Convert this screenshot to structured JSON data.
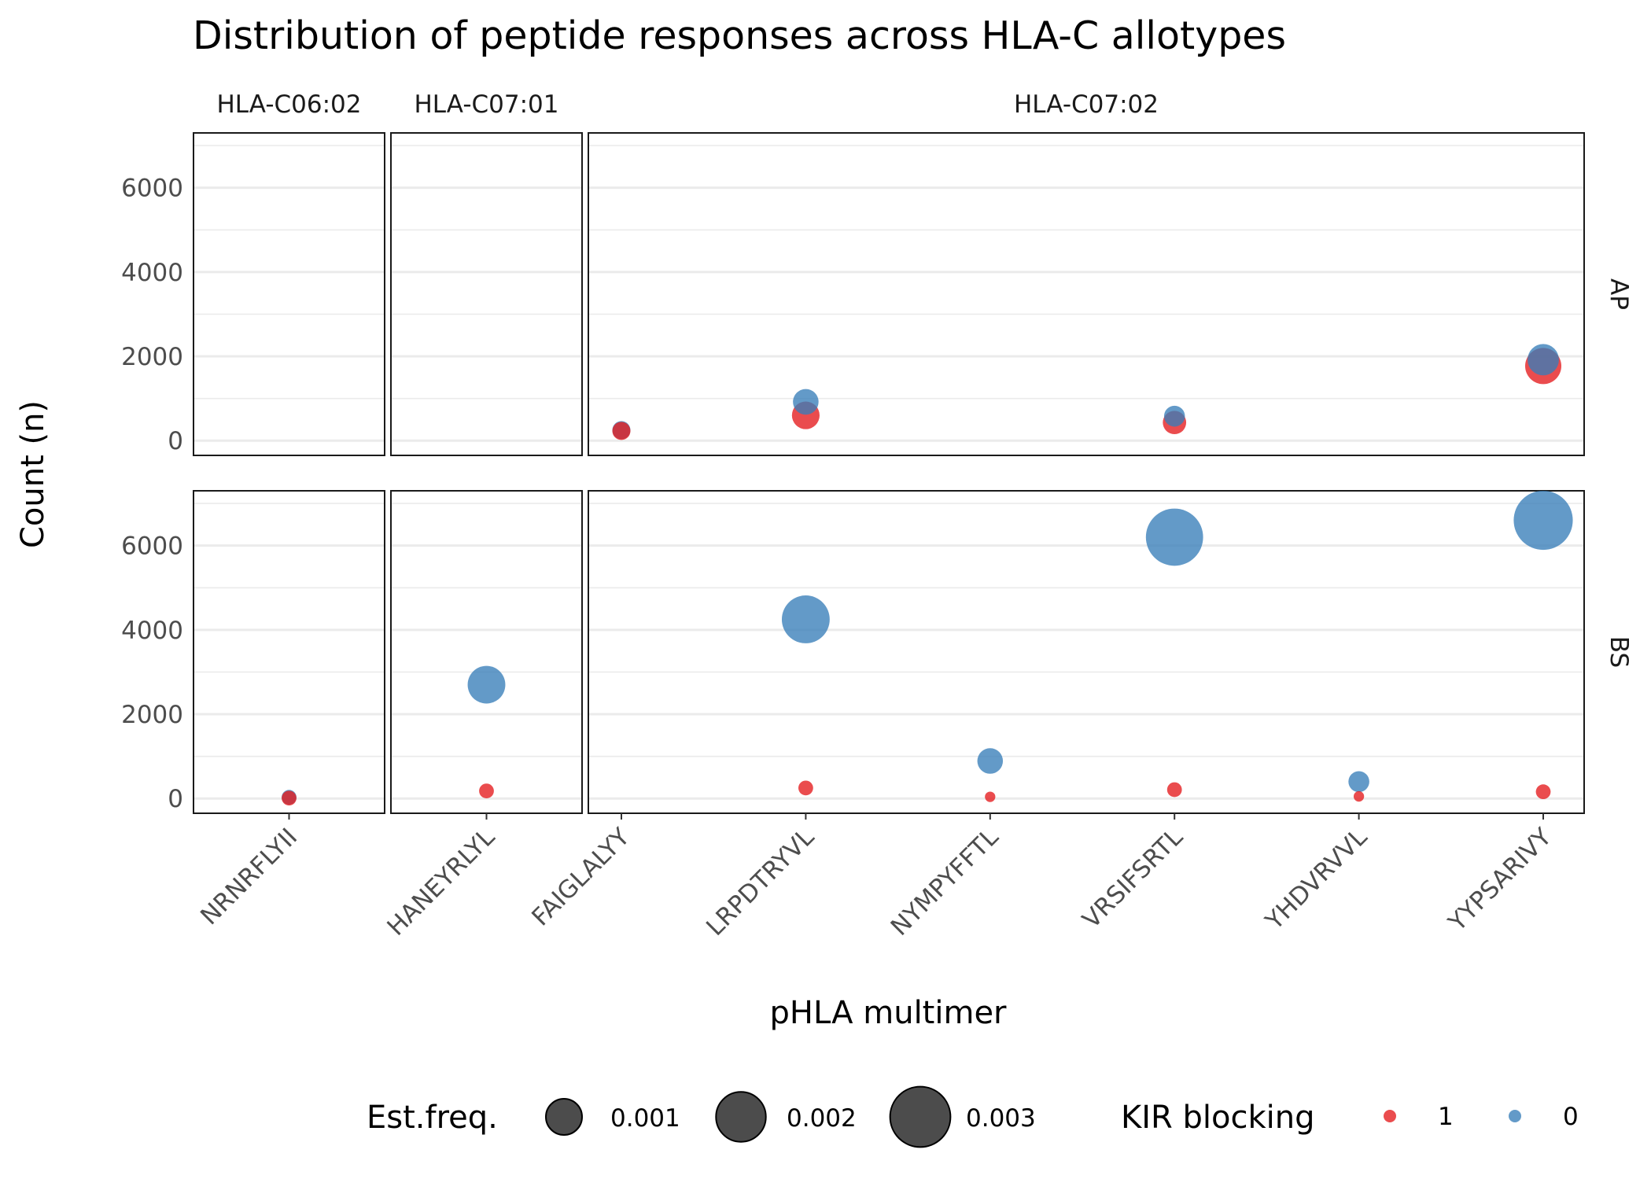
{
  "chart_data": {
    "type": "scatter",
    "title": "Distribution of peptide responses across HLA-C allotypes",
    "xlabel": "pHLA multimer",
    "ylabel": "Count (n)",
    "ylim": [
      -350,
      7300
    ],
    "yticks": [
      0,
      2000,
      4000,
      6000
    ],
    "grid": true,
    "facets": {
      "columns": [
        {
          "label": "HLA-C06:02",
          "categories": [
            "NRNRFLYII"
          ]
        },
        {
          "label": "HLA-C07:01",
          "categories": [
            "HANEYRLYL"
          ]
        },
        {
          "label": "HLA-C07:02",
          "categories": [
            "FAIGLALYY",
            "LRPDTRYVL",
            "NYMPYFFTL",
            "VRSIFSRTL",
            "YHDVRVVL",
            "YYPSARIVY"
          ]
        }
      ],
      "rows": [
        "AP",
        "BS"
      ]
    },
    "legend": {
      "placement": "bottom",
      "size_title": "Est.freq.",
      "size_entries": [
        {
          "label": "0.001",
          "value": 0.001
        },
        {
          "label": "0.002",
          "value": 0.002
        },
        {
          "label": "0.003",
          "value": 0.003
        }
      ],
      "color_title": "KIR blocking",
      "color_entries": [
        {
          "label": "1",
          "color": "#e41a1c"
        },
        {
          "label": "0",
          "color": "#377eb8"
        }
      ]
    },
    "colors": {
      "1": "#e41a1c",
      "0": "#377eb8"
    },
    "points": [
      {
        "row": "AP",
        "peptide": "FAIGLALYY",
        "kir": "0",
        "count": 250,
        "freq": 0.0003
      },
      {
        "row": "AP",
        "peptide": "FAIGLALYY",
        "kir": "1",
        "count": 230,
        "freq": 0.0003
      },
      {
        "row": "AP",
        "peptide": "LRPDTRYVL",
        "kir": "0",
        "count": 920,
        "freq": 0.0006
      },
      {
        "row": "AP",
        "peptide": "LRPDTRYVL",
        "kir": "1",
        "count": 600,
        "freq": 0.0007
      },
      {
        "row": "AP",
        "peptide": "VRSIFSRTL",
        "kir": "0",
        "count": 580,
        "freq": 0.0004
      },
      {
        "row": "AP",
        "peptide": "VRSIFSRTL",
        "kir": "1",
        "count": 430,
        "freq": 0.0005
      },
      {
        "row": "AP",
        "peptide": "YYPSARIVY",
        "kir": "0",
        "count": 1920,
        "freq": 0.0009
      },
      {
        "row": "AP",
        "peptide": "YYPSARIVY",
        "kir": "1",
        "count": 1770,
        "freq": 0.0012
      },
      {
        "row": "BS",
        "peptide": "NRNRFLYII",
        "kir": "0",
        "count": 30,
        "freq": 0.0002
      },
      {
        "row": "BS",
        "peptide": "NRNRFLYII",
        "kir": "1",
        "count": 10,
        "freq": 0.0002
      },
      {
        "row": "BS",
        "peptide": "HANEYRLYL",
        "kir": "0",
        "count": 2700,
        "freq": 0.0013
      },
      {
        "row": "BS",
        "peptide": "HANEYRLYL",
        "kir": "1",
        "count": 180,
        "freq": 0.0002
      },
      {
        "row": "BS",
        "peptide": "LRPDTRYVL",
        "kir": "0",
        "count": 4250,
        "freq": 0.0021
      },
      {
        "row": "BS",
        "peptide": "LRPDTRYVL",
        "kir": "1",
        "count": 250,
        "freq": 0.0002
      },
      {
        "row": "BS",
        "peptide": "NYMPYFFTL",
        "kir": "0",
        "count": 890,
        "freq": 0.0006
      },
      {
        "row": "BS",
        "peptide": "NYMPYFFTL",
        "kir": "1",
        "count": 40,
        "freq": 0.0001
      },
      {
        "row": "BS",
        "peptide": "VRSIFSRTL",
        "kir": "0",
        "count": 6200,
        "freq": 0.003
      },
      {
        "row": "BS",
        "peptide": "VRSIFSRTL",
        "kir": "1",
        "count": 210,
        "freq": 0.0002
      },
      {
        "row": "BS",
        "peptide": "YHDVRVVL",
        "kir": "0",
        "count": 400,
        "freq": 0.0004
      },
      {
        "row": "BS",
        "peptide": "YHDVRVVL",
        "kir": "1",
        "count": 50,
        "freq": 0.0001
      },
      {
        "row": "BS",
        "peptide": "YYPSARIVY",
        "kir": "0",
        "count": 6600,
        "freq": 0.0032
      },
      {
        "row": "BS",
        "peptide": "YYPSARIVY",
        "kir": "1",
        "count": 160,
        "freq": 0.0002
      }
    ]
  }
}
